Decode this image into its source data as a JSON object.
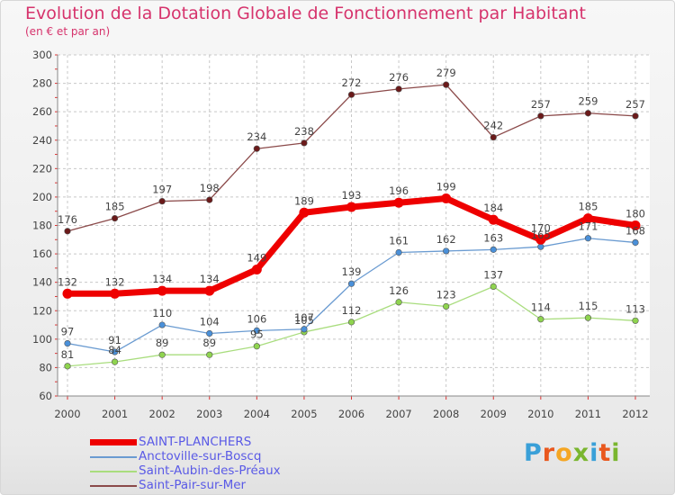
{
  "title": "Evolution de la Dotation Globale de Fonctionnement par Habitant",
  "subtitle": "(en € et par an)",
  "logo": {
    "text": "Proxiti",
    "letters": [
      "P",
      "r",
      "o",
      "x",
      "i",
      "t",
      "i"
    ],
    "colors": [
      "#3aa0d8",
      "#e9581e",
      "#f5a623",
      "#7ab62f",
      "#3aa0d8",
      "#e9581e",
      "#7ab62f"
    ]
  },
  "chart_data": {
    "type": "line",
    "title": "Evolution de la Dotation Globale de Fonctionnement par Habitant",
    "subtitle": "(en € et par an)",
    "xlabel": "",
    "ylabel": "",
    "x": [
      "2000",
      "2001",
      "2002",
      "2003",
      "2004",
      "2005",
      "2006",
      "2007",
      "2008",
      "2009",
      "2010",
      "2011",
      "2012"
    ],
    "ylim": [
      60,
      300
    ],
    "yticks": [
      60,
      80,
      100,
      120,
      140,
      160,
      180,
      200,
      220,
      240,
      260,
      280,
      300
    ],
    "grid": true,
    "legend_position": "bottom-left",
    "series": [
      {
        "name": "SAINT-PLANCHERS",
        "color": "#ee0000",
        "marker": "#ee0000",
        "width": 7,
        "values": [
          132,
          132,
          134,
          134,
          149,
          189,
          193,
          196,
          199,
          184,
          170,
          185,
          180
        ]
      },
      {
        "name": "Anctoville-sur-Boscq",
        "color": "#6a9bd1",
        "marker": "#4a90d9",
        "width": 1.3,
        "values": [
          97,
          91,
          110,
          104,
          106,
          107,
          139,
          161,
          162,
          163,
          165,
          171,
          168
        ]
      },
      {
        "name": "Saint-Aubin-des-Préaux",
        "color": "#a9dd7e",
        "marker": "#8fd44f",
        "width": 1.3,
        "values": [
          81,
          84,
          89,
          89,
          95,
          105,
          112,
          126,
          123,
          137,
          114,
          115,
          113
        ]
      },
      {
        "name": "Saint-Pair-sur-Mer",
        "color": "#8b4a4a",
        "marker": "#6b1a1a",
        "width": 1.3,
        "values": [
          176,
          185,
          197,
          198,
          234,
          238,
          272,
          276,
          279,
          242,
          257,
          259,
          257
        ]
      }
    ]
  }
}
